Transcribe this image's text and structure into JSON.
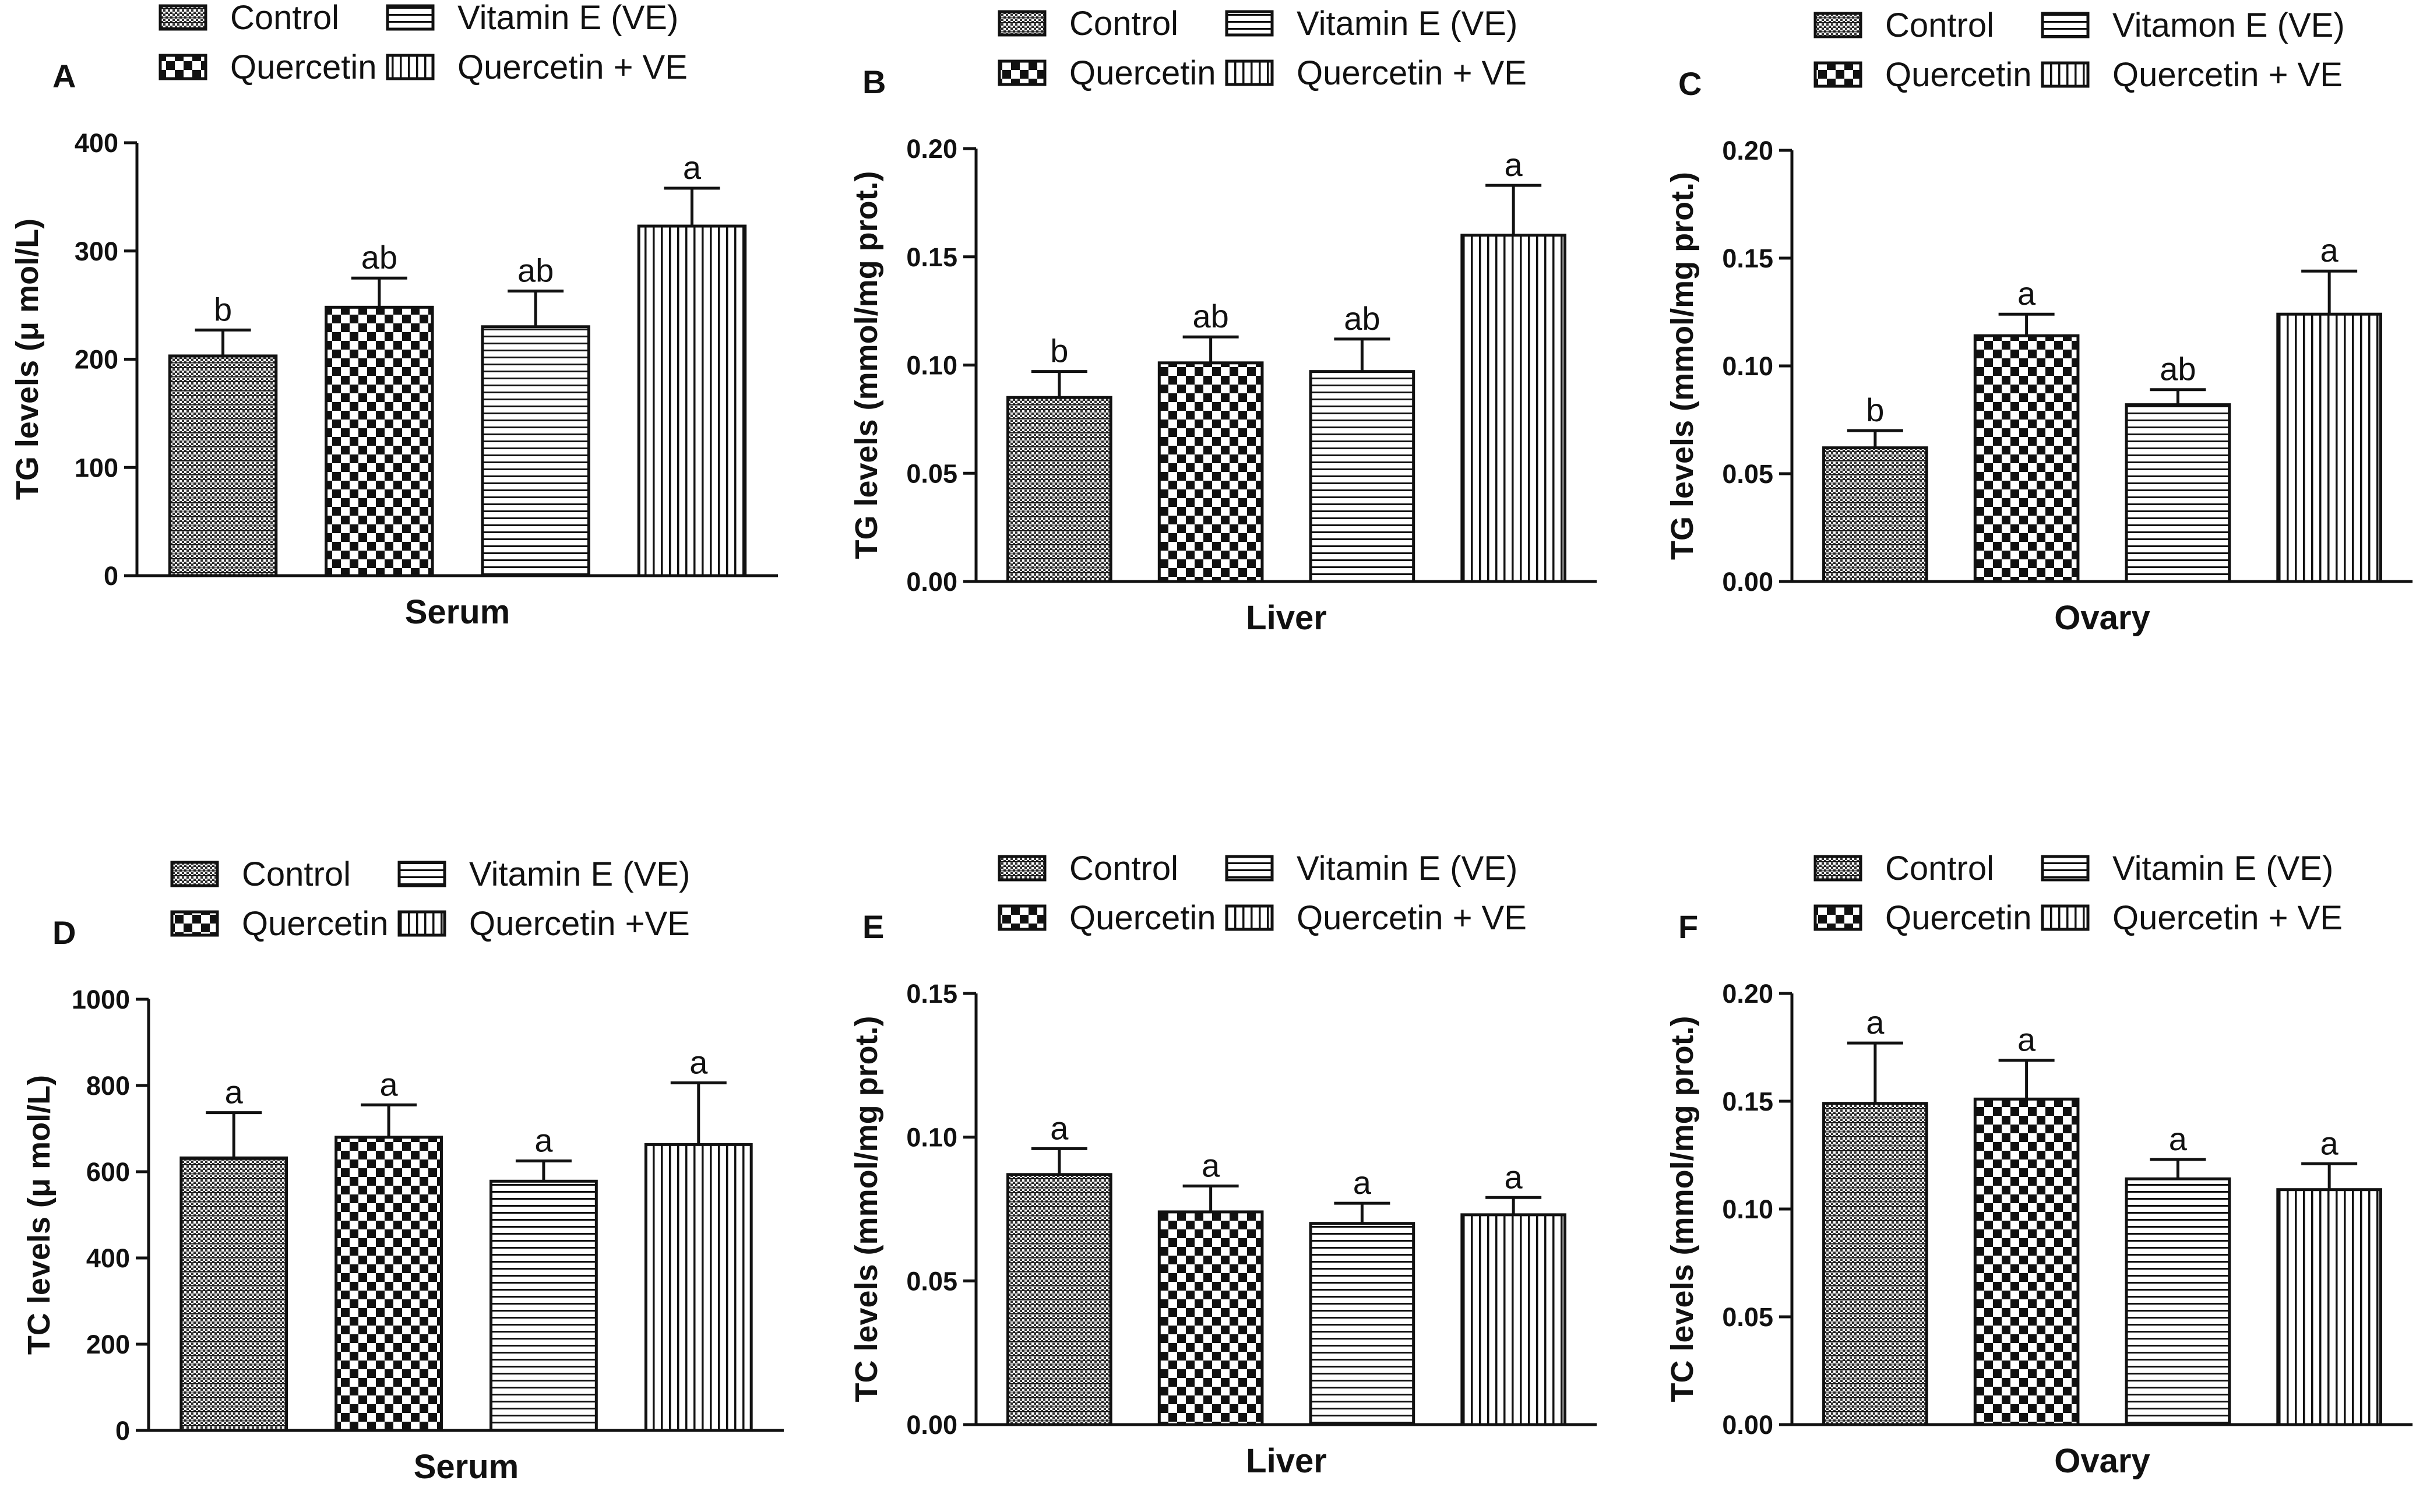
{
  "chart_data": [
    {
      "type": "bar",
      "panel": "A",
      "legend": [
        "Control",
        "Vitamin E (VE)",
        "Quercetin",
        "Quercetin + VE"
      ],
      "categories": [
        "Control",
        "Quercetin",
        "Vitamin E (VE)",
        "Quercetin + VE"
      ],
      "values": [
        203,
        248,
        230,
        323
      ],
      "errors": [
        24,
        27,
        33,
        35
      ],
      "significance": [
        "b",
        "ab",
        "ab",
        "a"
      ],
      "ylabel": "TG levels (μ mol/L)",
      "xlabel": "Serum",
      "ylim": [
        0,
        400
      ],
      "yticks": [
        "0",
        "100",
        "200",
        "300",
        "400"
      ]
    },
    {
      "type": "bar",
      "panel": "B",
      "legend": [
        "Control",
        "Vitamin E (VE)",
        "Quercetin",
        "Quercetin + VE"
      ],
      "categories": [
        "Control",
        "Quercetin",
        "Vitamin E (VE)",
        "Quercetin + VE"
      ],
      "values": [
        0.085,
        0.101,
        0.097,
        0.16
      ],
      "errors": [
        0.012,
        0.012,
        0.015,
        0.023
      ],
      "significance": [
        "b",
        "ab",
        "ab",
        "a"
      ],
      "ylabel": "TG levels (mmol/mg prot.)",
      "xlabel": "Liver",
      "ylim": [
        0,
        0.2
      ],
      "yticks": [
        "0.00",
        "0.05",
        "0.10",
        "0.15",
        "0.20"
      ]
    },
    {
      "type": "bar",
      "panel": "C",
      "legend": [
        "Control",
        "Vitamon E (VE)",
        "Quercetin",
        "Quercetin + VE"
      ],
      "categories": [
        "Control",
        "Quercetin",
        "Vitamin E (VE)",
        "Quercetin + VE"
      ],
      "values": [
        0.062,
        0.114,
        0.082,
        0.124
      ],
      "errors": [
        0.008,
        0.01,
        0.007,
        0.02
      ],
      "significance": [
        "b",
        "a",
        "ab",
        "a"
      ],
      "ylabel": "TG levels (mmol/mg prot.)",
      "xlabel": "Ovary",
      "ylim": [
        0,
        0.2
      ],
      "yticks": [
        "0.00",
        "0.05",
        "0.10",
        "0.15",
        "0.20"
      ]
    },
    {
      "type": "bar",
      "panel": "D",
      "legend": [
        "Control",
        "Vitamin E (VE)",
        "Quercetin",
        "Quercetin +VE"
      ],
      "categories": [
        "Control",
        "Quercetin",
        "Vitamin E (VE)",
        "Quercetin + VE"
      ],
      "values": [
        632,
        680,
        578,
        663
      ],
      "errors": [
        105,
        75,
        47,
        143
      ],
      "significance": [
        "a",
        "a",
        "a",
        "a"
      ],
      "ylabel": "TC levels (μ mol/L)",
      "xlabel": "Serum",
      "ylim": [
        0,
        1000
      ],
      "yticks": [
        "0",
        "200",
        "400",
        "600",
        "800",
        "1000"
      ]
    },
    {
      "type": "bar",
      "panel": "E",
      "legend": [
        "Control",
        "Vitamin E (VE)",
        "Quercetin",
        "Quercetin + VE"
      ],
      "categories": [
        "Control",
        "Quercetin",
        "Vitamin E (VE)",
        "Quercetin + VE"
      ],
      "values": [
        0.087,
        0.074,
        0.07,
        0.073
      ],
      "errors": [
        0.009,
        0.009,
        0.007,
        0.006
      ],
      "significance": [
        "a",
        "a",
        "a",
        "a"
      ],
      "ylabel": "TC levels (mmol/mg prot.)",
      "xlabel": "Liver",
      "ylim": [
        0,
        0.15
      ],
      "yticks": [
        "0.00",
        "0.05",
        "0.10",
        "0.15"
      ]
    },
    {
      "type": "bar",
      "panel": "F",
      "legend": [
        "Control",
        "Vitamin E (VE)",
        "Quercetin",
        "Quercetin + VE"
      ],
      "categories": [
        "Control",
        "Quercetin",
        "Vitamin E (VE)",
        "Quercetin + VE"
      ],
      "values": [
        0.149,
        0.151,
        0.114,
        0.109
      ],
      "errors": [
        0.028,
        0.018,
        0.009,
        0.012
      ],
      "significance": [
        "a",
        "a",
        "a",
        "a"
      ],
      "ylabel": "TC levels (mmol/mg prot.)",
      "xlabel": "Ovary",
      "ylim": [
        0,
        0.2
      ],
      "yticks": [
        "0.00",
        "0.05",
        "0.10",
        "0.15",
        "0.20"
      ]
    }
  ]
}
